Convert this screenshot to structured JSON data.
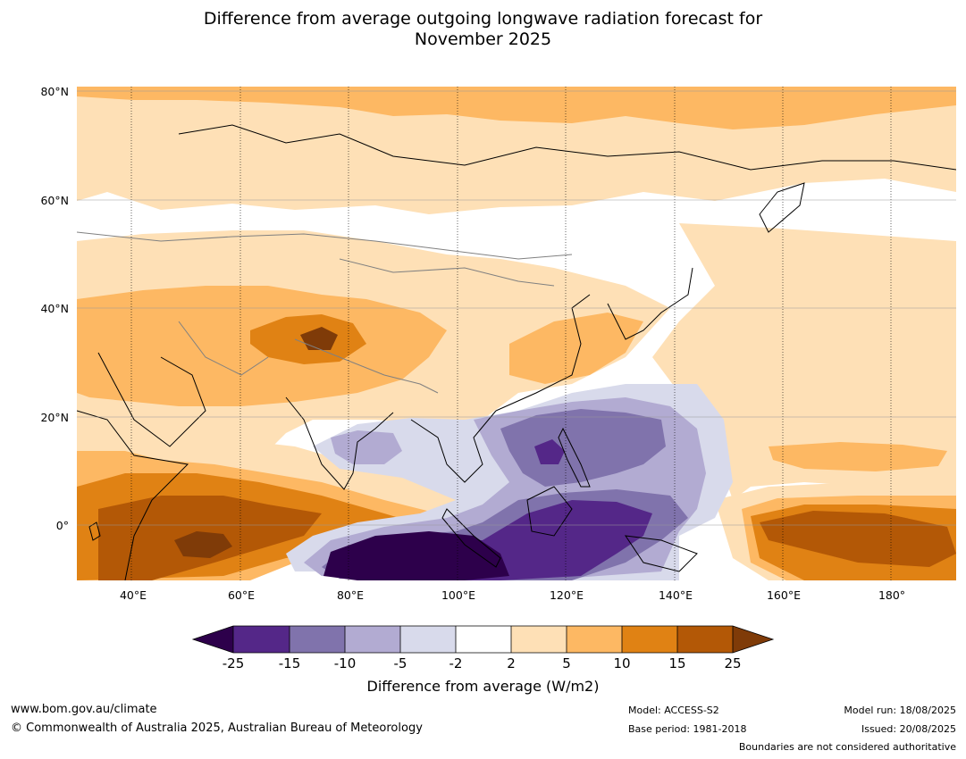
{
  "title_line1": "Difference from average outgoing longwave radiation forecast for",
  "title_line2": "November 2025",
  "map": {
    "lat_ticks": [
      "80°N",
      "60°N",
      "40°N",
      "20°N",
      "0°"
    ],
    "lon_ticks": [
      "40°E",
      "60°E",
      "80°E",
      "100°E",
      "120°E",
      "140°E",
      "160°E",
      "180°"
    ]
  },
  "colorbar": {
    "label": "Difference from average (W/m2)",
    "ticks": [
      "-25",
      "-15",
      "-10",
      "-5",
      "-2",
      "2",
      "5",
      "10",
      "15",
      "25"
    ],
    "colors": {
      "below_min": "#2d004b",
      "c1": "#542788",
      "c2": "#8073ac",
      "c3": "#b2abd2",
      "c4": "#d8daeb",
      "c5": "#ffffff",
      "c6": "#fee0b6",
      "c7": "#fdb863",
      "c8": "#e08214",
      "c9": "#b35806",
      "above_max": "#7f3b08"
    }
  },
  "footer": {
    "website": "www.bom.gov.au/climate",
    "copyright": "© Commonwealth of Australia 2025, Australian Bureau of Meteorology",
    "model": "Model: ACCESS-S2",
    "base_period": "Base period: 1981-2018",
    "model_run": "Model run: 18/08/2025",
    "issued": "Issued: 20/08/2025",
    "disclaimer": "Boundaries are not considered authoritative"
  }
}
